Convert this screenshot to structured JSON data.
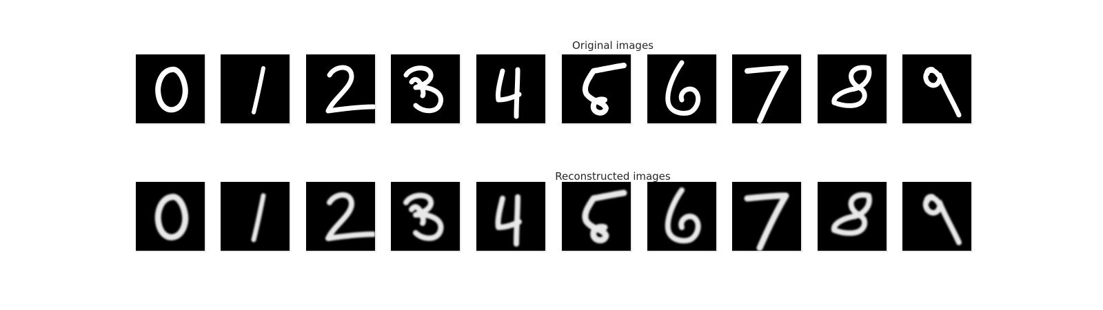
{
  "titles": {
    "original": "Original images",
    "reconstructed": "Reconstructed images"
  },
  "digits": [
    "0",
    "1",
    "2",
    "3",
    "4",
    "5",
    "6",
    "7",
    "8",
    "9"
  ],
  "colors": {
    "background": "#ffffff",
    "tile": "#000000",
    "stroke": "#ffffff",
    "title_text": "#262626"
  }
}
